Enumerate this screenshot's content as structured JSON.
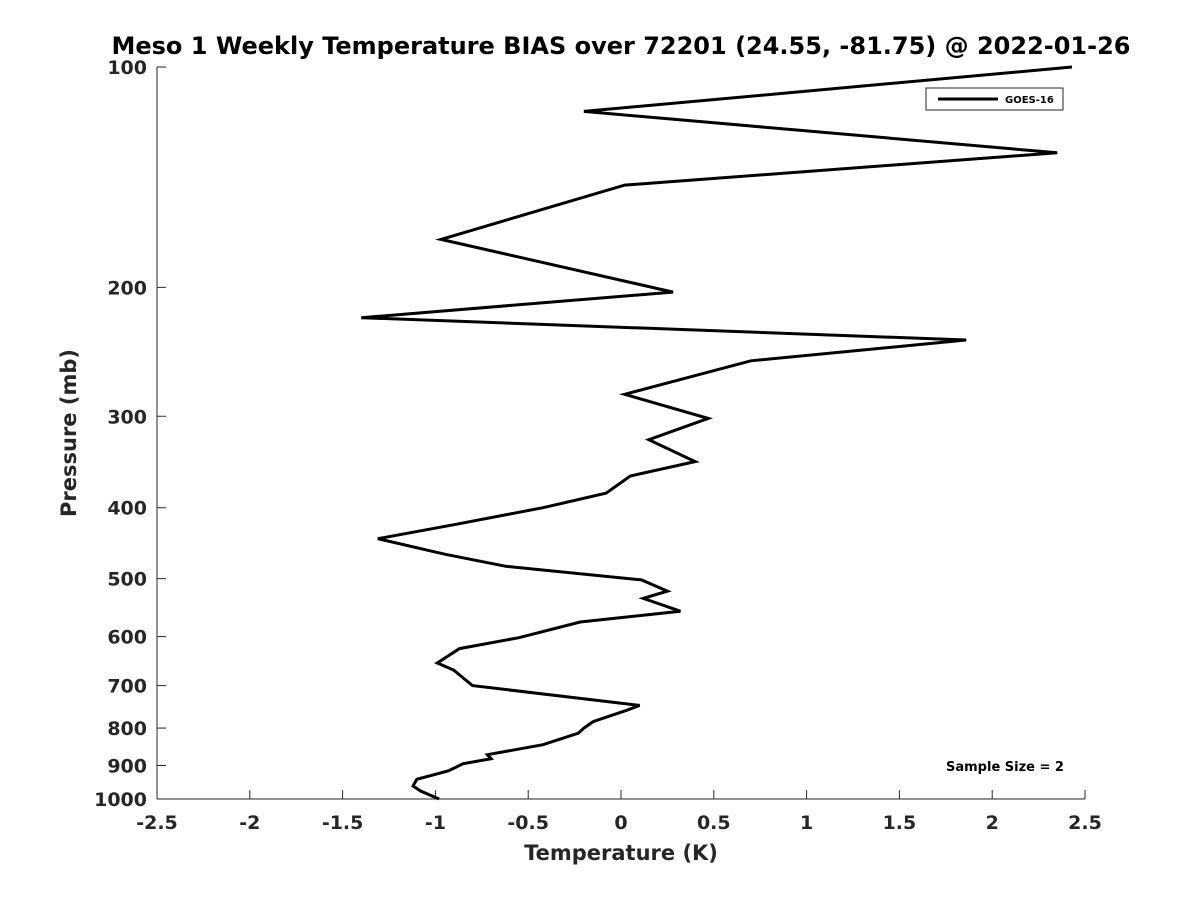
{
  "chart_data": {
    "type": "line",
    "title": "Meso 1 Weekly Temperature BIAS over 72201 (24.55, -81.75) @ 2022-01-26",
    "xlabel": "Temperature (K)",
    "ylabel": "Pressure (mb)",
    "xlim": [
      -2.5,
      2.5
    ],
    "ylim": [
      100,
      1000
    ],
    "y_scale": "log",
    "y_reversed": true,
    "x_ticks": [
      -2.5,
      -2,
      -1.5,
      -1,
      -0.5,
      0,
      0.5,
      1,
      1.5,
      2,
      2.5
    ],
    "x_tick_labels": [
      "-2.5",
      "-2",
      "-1.5",
      "-1",
      "-0.5",
      "0",
      "0.5",
      "1",
      "1.5",
      "2",
      "2.5"
    ],
    "y_ticks": [
      100,
      200,
      300,
      400,
      500,
      600,
      700,
      800,
      900,
      1000
    ],
    "y_tick_labels": [
      "100",
      "200",
      "300",
      "400",
      "500",
      "600",
      "700",
      "800",
      "900",
      "1000"
    ],
    "grid": false,
    "legend_position": "top-right",
    "line_color": "#000000",
    "series": [
      {
        "name": "GOES-16",
        "x": [
          2.43,
          -0.2,
          2.35,
          0.02,
          -0.97,
          0.28,
          -1.4,
          1.86,
          0.7,
          0.02,
          0.47,
          0.15,
          0.4,
          0.05,
          -0.08,
          -0.42,
          -0.9,
          -1.31,
          -0.95,
          -0.62,
          0.11,
          0.25,
          0.12,
          0.32,
          -0.22,
          -0.55,
          -0.87,
          -0.99,
          -0.9,
          -0.8,
          0.1,
          0.04,
          -0.15,
          -0.2,
          -0.23,
          -0.42,
          -0.72,
          -0.7,
          -0.85,
          -0.93,
          -1.1,
          -1.12,
          -1.08,
          -0.98
        ],
        "y": [
          100,
          115,
          131,
          145,
          172,
          203,
          220,
          236,
          252,
          280,
          302,
          323,
          346,
          362,
          382,
          400,
          422,
          441,
          463,
          481,
          502,
          520,
          532,
          554,
          573,
          602,
          623,
          652,
          667,
          700,
          745,
          755,
          784,
          800,
          813,
          843,
          870,
          881,
          895,
          915,
          940,
          960,
          975,
          1000
        ]
      }
    ],
    "annotation": "Sample Size = 2"
  }
}
